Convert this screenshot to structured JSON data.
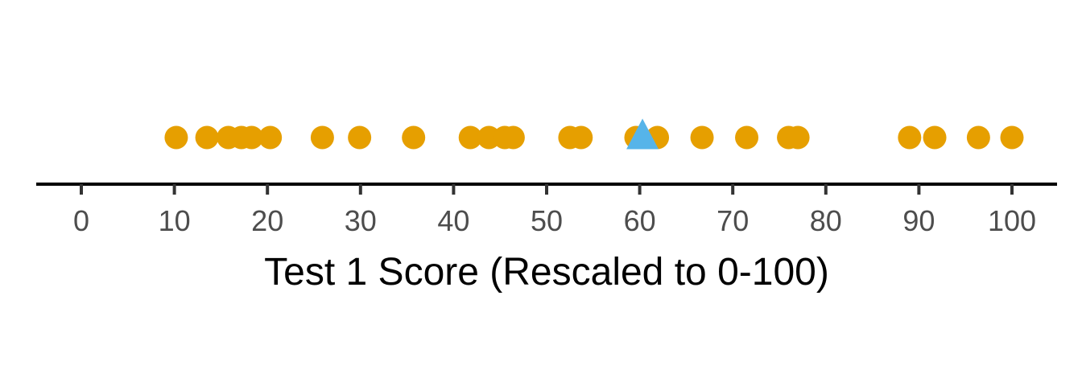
{
  "chart_data": {
    "type": "scatter",
    "title": "",
    "xlabel": "Test 1 Score (Rescaled to 0-100)",
    "ylabel": "",
    "xlim": [
      -5,
      105
    ],
    "x_ticks": [
      0,
      10,
      20,
      30,
      40,
      50,
      60,
      70,
      80,
      90,
      100
    ],
    "grid": false,
    "legend": "none",
    "series": [
      {
        "marker": "circle",
        "color": "#E69F00",
        "x": [
          10.2,
          13.5,
          15.8,
          17.2,
          18.3,
          20.3,
          25.9,
          29.9,
          35.7,
          41.8,
          43.8,
          45.5,
          46.4,
          52.5,
          53.7,
          59.6,
          61.9,
          66.7,
          71.5,
          76.0,
          77.0,
          89.0,
          91.7,
          96.4,
          100.0
        ]
      },
      {
        "marker": "triangle",
        "color": "#56B4E9",
        "x": [
          60.3
        ]
      }
    ]
  }
}
